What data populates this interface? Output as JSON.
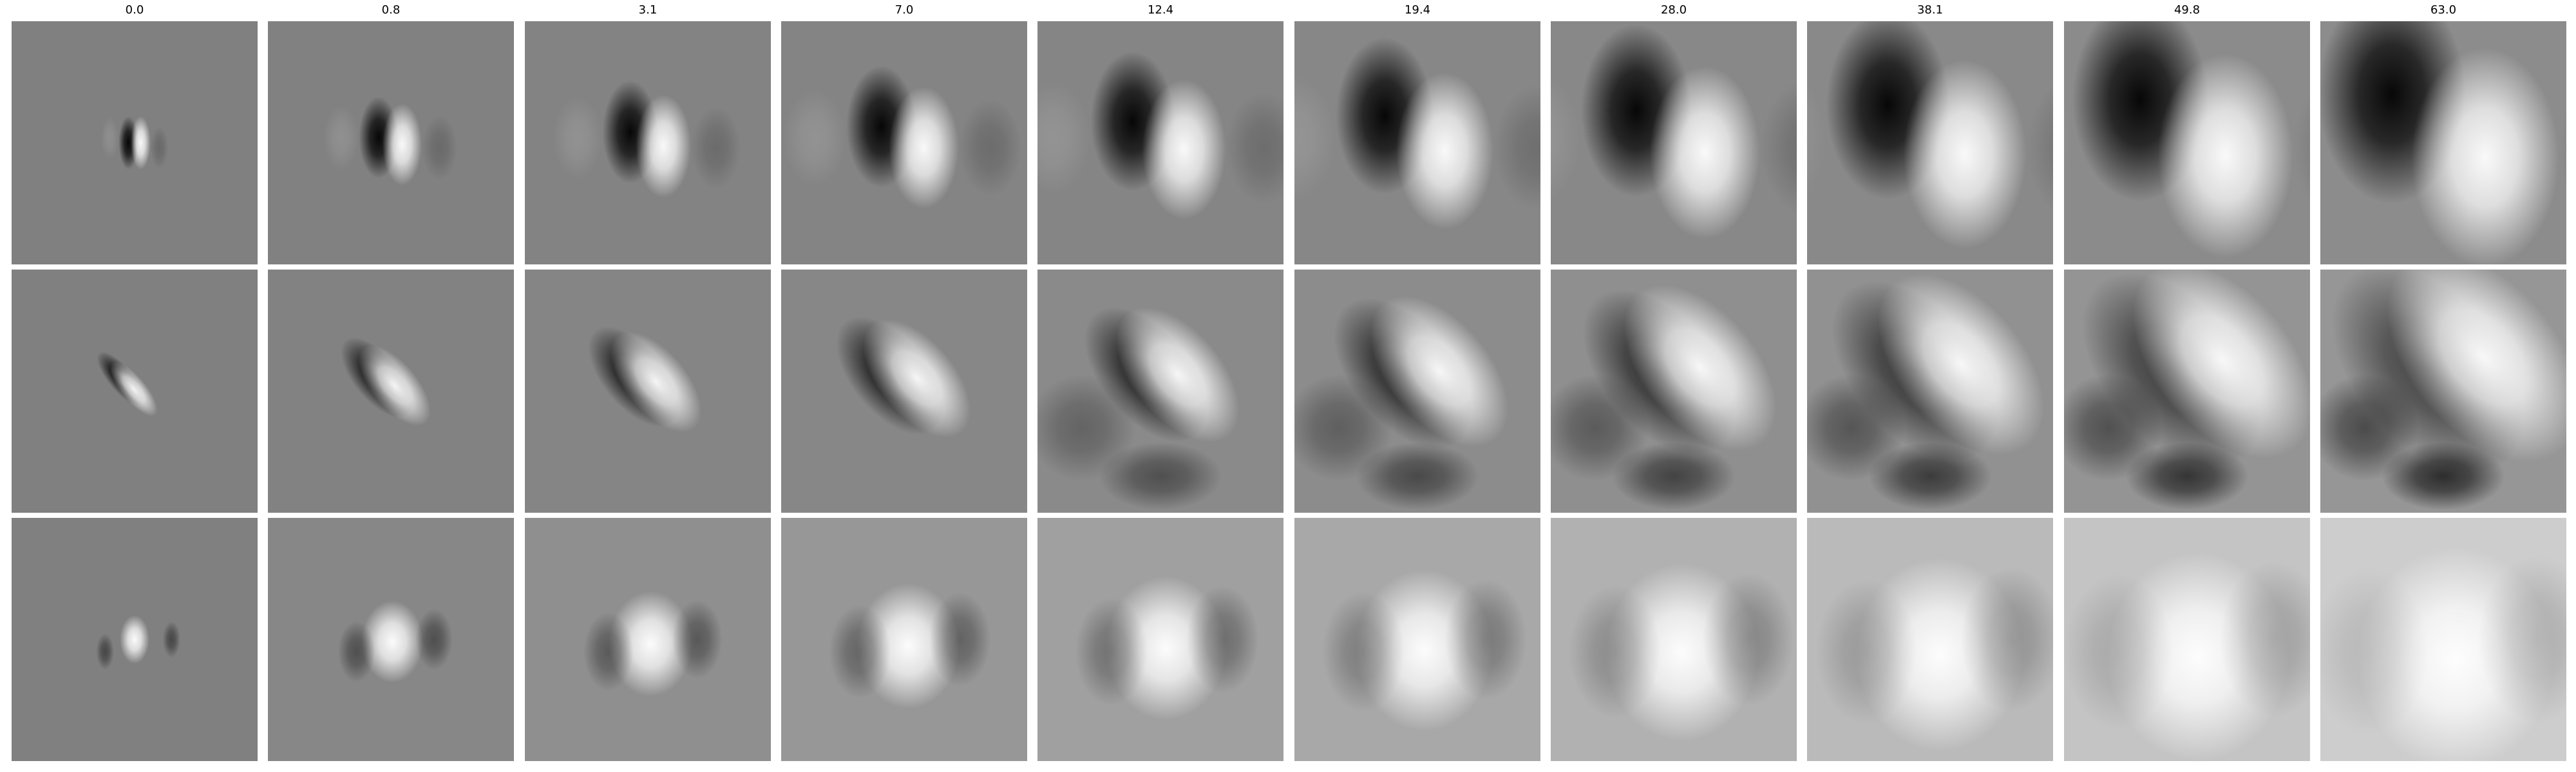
{
  "figure": {
    "column_titles": [
      "0.0",
      "0.8",
      "3.1",
      "7.0",
      "12.4",
      "19.4",
      "28.0",
      "38.1",
      "49.8",
      "63.0"
    ],
    "rows": 3,
    "colormap": "grayscale"
  }
}
